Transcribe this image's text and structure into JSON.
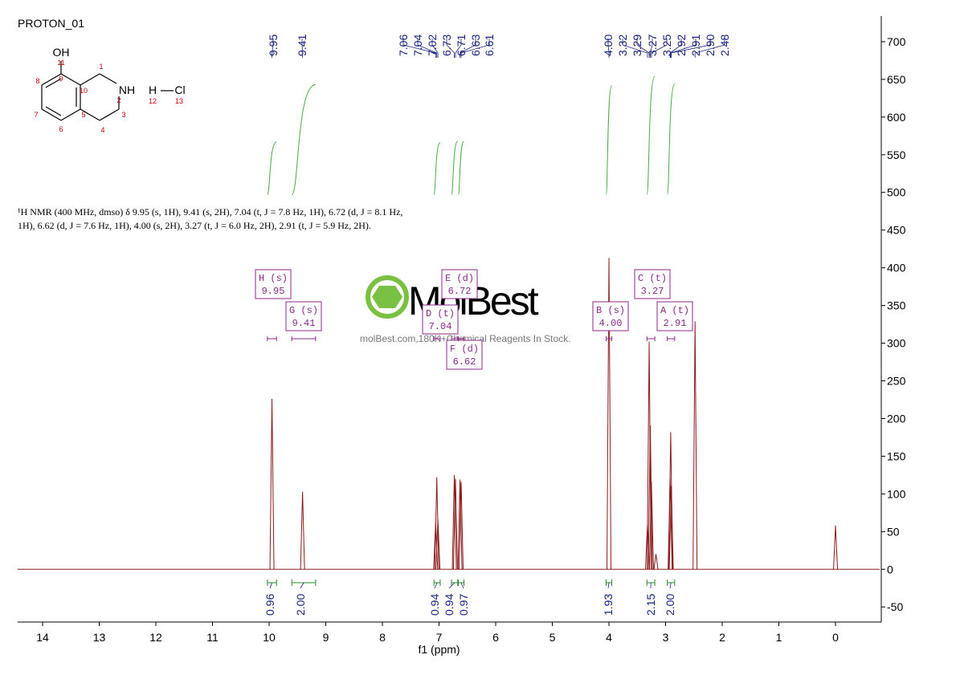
{
  "chart_data": {
    "type": "nmr",
    "title": "PROTON_01",
    "x_label": "f1 (ppm)",
    "xlim": [
      14.44,
      -0.78
    ],
    "xticks": [
      14,
      13,
      12,
      11,
      10,
      9,
      8,
      7,
      6,
      5,
      4,
      3,
      2,
      1,
      0
    ],
    "ylim": [
      -70,
      734
    ],
    "yticks": [
      -50,
      0,
      50,
      100,
      150,
      200,
      250,
      300,
      350,
      400,
      450,
      500,
      550,
      600,
      650,
      700
    ],
    "color": "#8b1a1a",
    "peaks": {
      "x": [
        9.95,
        9.41,
        7.06,
        7.04,
        7.02,
        6.73,
        6.71,
        6.63,
        6.61,
        4.0,
        3.32,
        3.29,
        3.27,
        3.25,
        2.92,
        2.91,
        2.9,
        2.48,
        3.17,
        0
      ],
      "labels": [
        "9.95",
        "9.41",
        "7.06",
        "7.04",
        "7.02",
        "6.73",
        "6.71",
        "6.63",
        "6.61",
        "4.00",
        "3.32",
        "3.29",
        "3.27",
        "3.25",
        "2.92",
        "2.91",
        "2.90",
        "2.48",
        null,
        null
      ],
      "heights": [
        226,
        103,
        62,
        122,
        66,
        125,
        120,
        119,
        116,
        413,
        60,
        302,
        191,
        116,
        121,
        182,
        111,
        329,
        20,
        58
      ]
    },
    "integrals": [
      {
        "range": [
          10.03,
          9.87
        ],
        "label": "0.96",
        "curve": [
          497,
          567
        ]
      },
      {
        "range": [
          9.6,
          9.18
        ],
        "label": "2.00",
        "curve": [
          497,
          643
        ]
      },
      {
        "range": [
          7.09,
          6.98
        ],
        "label": "0.94",
        "curve": [
          497,
          566
        ]
      },
      {
        "range": [
          6.78,
          6.67
        ],
        "label": "0.94",
        "curve": [
          497,
          568
        ]
      },
      {
        "range": [
          6.66,
          6.56
        ],
        "label": "0.97",
        "curve": [
          497,
          568
        ]
      },
      {
        "range": [
          4.05,
          3.95
        ],
        "label": "1.93",
        "curve": [
          497,
          642
        ]
      },
      {
        "range": [
          3.33,
          3.19
        ],
        "label": "2.15",
        "curve": [
          497,
          654
        ]
      },
      {
        "range": [
          2.97,
          2.84
        ],
        "label": "2.00",
        "curve": [
          497,
          644
        ]
      }
    ],
    "multiplets": [
      {
        "label": "H (s)",
        "shift": "9.95",
        "range": [
          10.03,
          9.87
        ]
      },
      {
        "label": "G (s)",
        "shift": "9.41",
        "range": [
          9.6,
          9.18
        ]
      },
      {
        "label": "E (d)",
        "shift": "6.72",
        "range": [
          6.78,
          6.67
        ]
      },
      {
        "label": "D (t)",
        "shift": "7.04",
        "range": [
          7.09,
          6.98
        ]
      },
      {
        "label": "F (d)",
        "shift": "6.62",
        "range": [
          6.66,
          6.56
        ]
      },
      {
        "label": "B (s)",
        "shift": "4.00",
        "range": [
          4.05,
          3.95
        ]
      },
      {
        "label": "C (t)",
        "shift": "3.27",
        "range": [
          3.33,
          3.19
        ]
      },
      {
        "label": "A (t)",
        "shift": "2.91",
        "range": [
          2.97,
          2.84
        ]
      }
    ],
    "description": [
      "¹H NMR (400 MHz, dmso) δ 9.95 (s, 1H), 9.41 (s, 2H), 7.04 (t, J = 7.8 Hz, 1H), 6.72 (d, J = 8.1 Hz,",
      "1H), 6.62 (d, J = 7.6 Hz, 1H), 4.00 (s, 2H), 3.27 (t, J = 6.0 Hz, 2H), 2.91 (t, J = 5.9 Hz, 2H)."
    ],
    "structure": {
      "atoms": [
        "OH",
        "NH",
        "H",
        "Cl"
      ],
      "numbers": [
        "11",
        "9",
        "8",
        "10",
        "1",
        "2",
        "12",
        "13",
        "7",
        "5",
        "3",
        "6",
        "4"
      ]
    },
    "watermark": {
      "brand": "MolBest",
      "tagline": "molBest.com,180K+Chemical Reagents In Stock."
    }
  }
}
